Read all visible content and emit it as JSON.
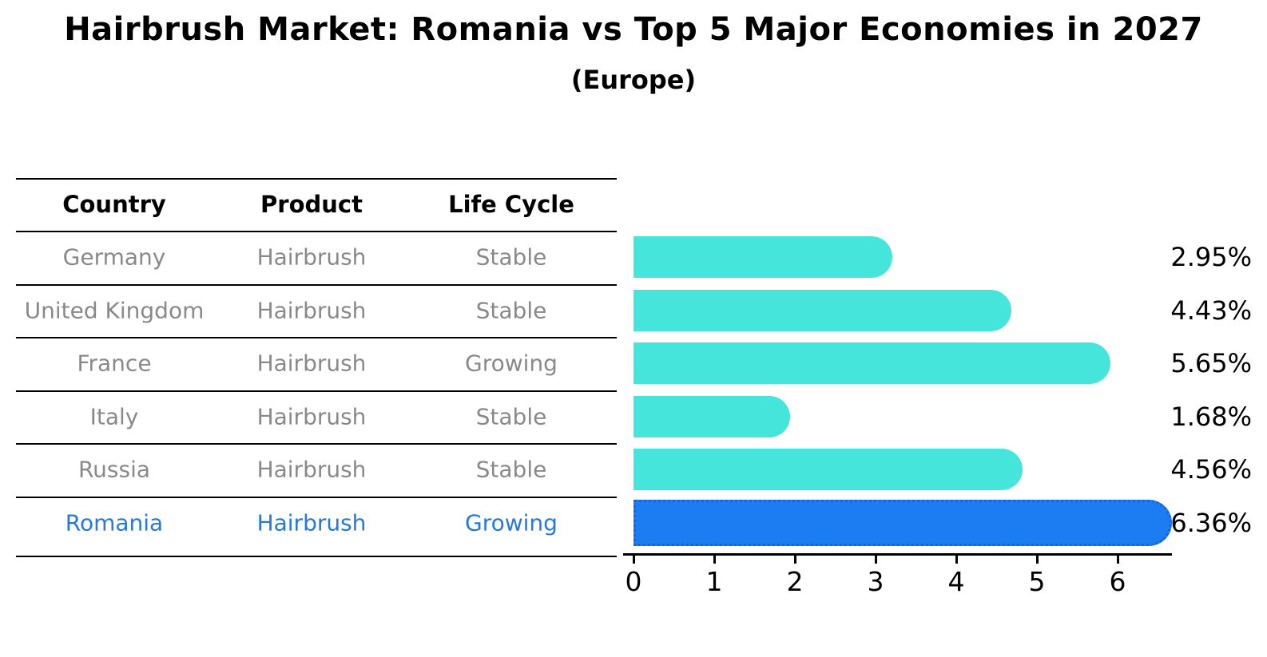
{
  "title": "Hairbrush Market: Romania vs Top 5 Major Economies in 2027",
  "subtitle": "(Europe)",
  "table": {
    "headers": [
      "Country",
      "Product",
      "Life Cycle"
    ],
    "rows": [
      {
        "country": "Germany",
        "product": "Hairbrush",
        "life_cycle": "Stable",
        "highlight": false
      },
      {
        "country": "United Kingdom",
        "product": "Hairbrush",
        "life_cycle": "Stable",
        "highlight": false
      },
      {
        "country": "France",
        "product": "Hairbrush",
        "life_cycle": "Growing",
        "highlight": false
      },
      {
        "country": "Italy",
        "product": "Hairbrush",
        "life_cycle": "Stable",
        "highlight": false
      },
      {
        "country": "Russia",
        "product": "Hairbrush",
        "life_cycle": "Stable",
        "highlight": false
      },
      {
        "country": "Romania",
        "product": "Hairbrush",
        "life_cycle": "Growing",
        "highlight": true
      }
    ]
  },
  "chart_data": {
    "type": "bar",
    "orientation": "horizontal",
    "title": "Hairbrush Market: Romania vs Top 5 Major Economies in 2027",
    "subtitle": "(Europe)",
    "categories": [
      "Germany",
      "United Kingdom",
      "France",
      "Italy",
      "Russia",
      "Romania"
    ],
    "values": [
      2.95,
      4.43,
      5.65,
      1.68,
      4.56,
      6.36
    ],
    "value_labels": [
      "2.95%",
      "4.43%",
      "5.65%",
      "1.68%",
      "4.56%",
      "6.36%"
    ],
    "unit": "%",
    "highlight_index": 5,
    "x_ticks": [
      0,
      1,
      2,
      3,
      4,
      5,
      6
    ],
    "xlim": [
      0,
      6.7
    ],
    "xlabel": "",
    "ylabel": "",
    "grid": false,
    "legend": false,
    "bar_color": "#45E5DC",
    "highlight_color": "#1C7DF2",
    "highlight_border_color": "#1565D8",
    "highlight_text_color": "#2878DC"
  },
  "colors": {
    "background": "#ffffff",
    "table_text": "#898989",
    "header_text": "#000000",
    "axis": "#000000"
  }
}
